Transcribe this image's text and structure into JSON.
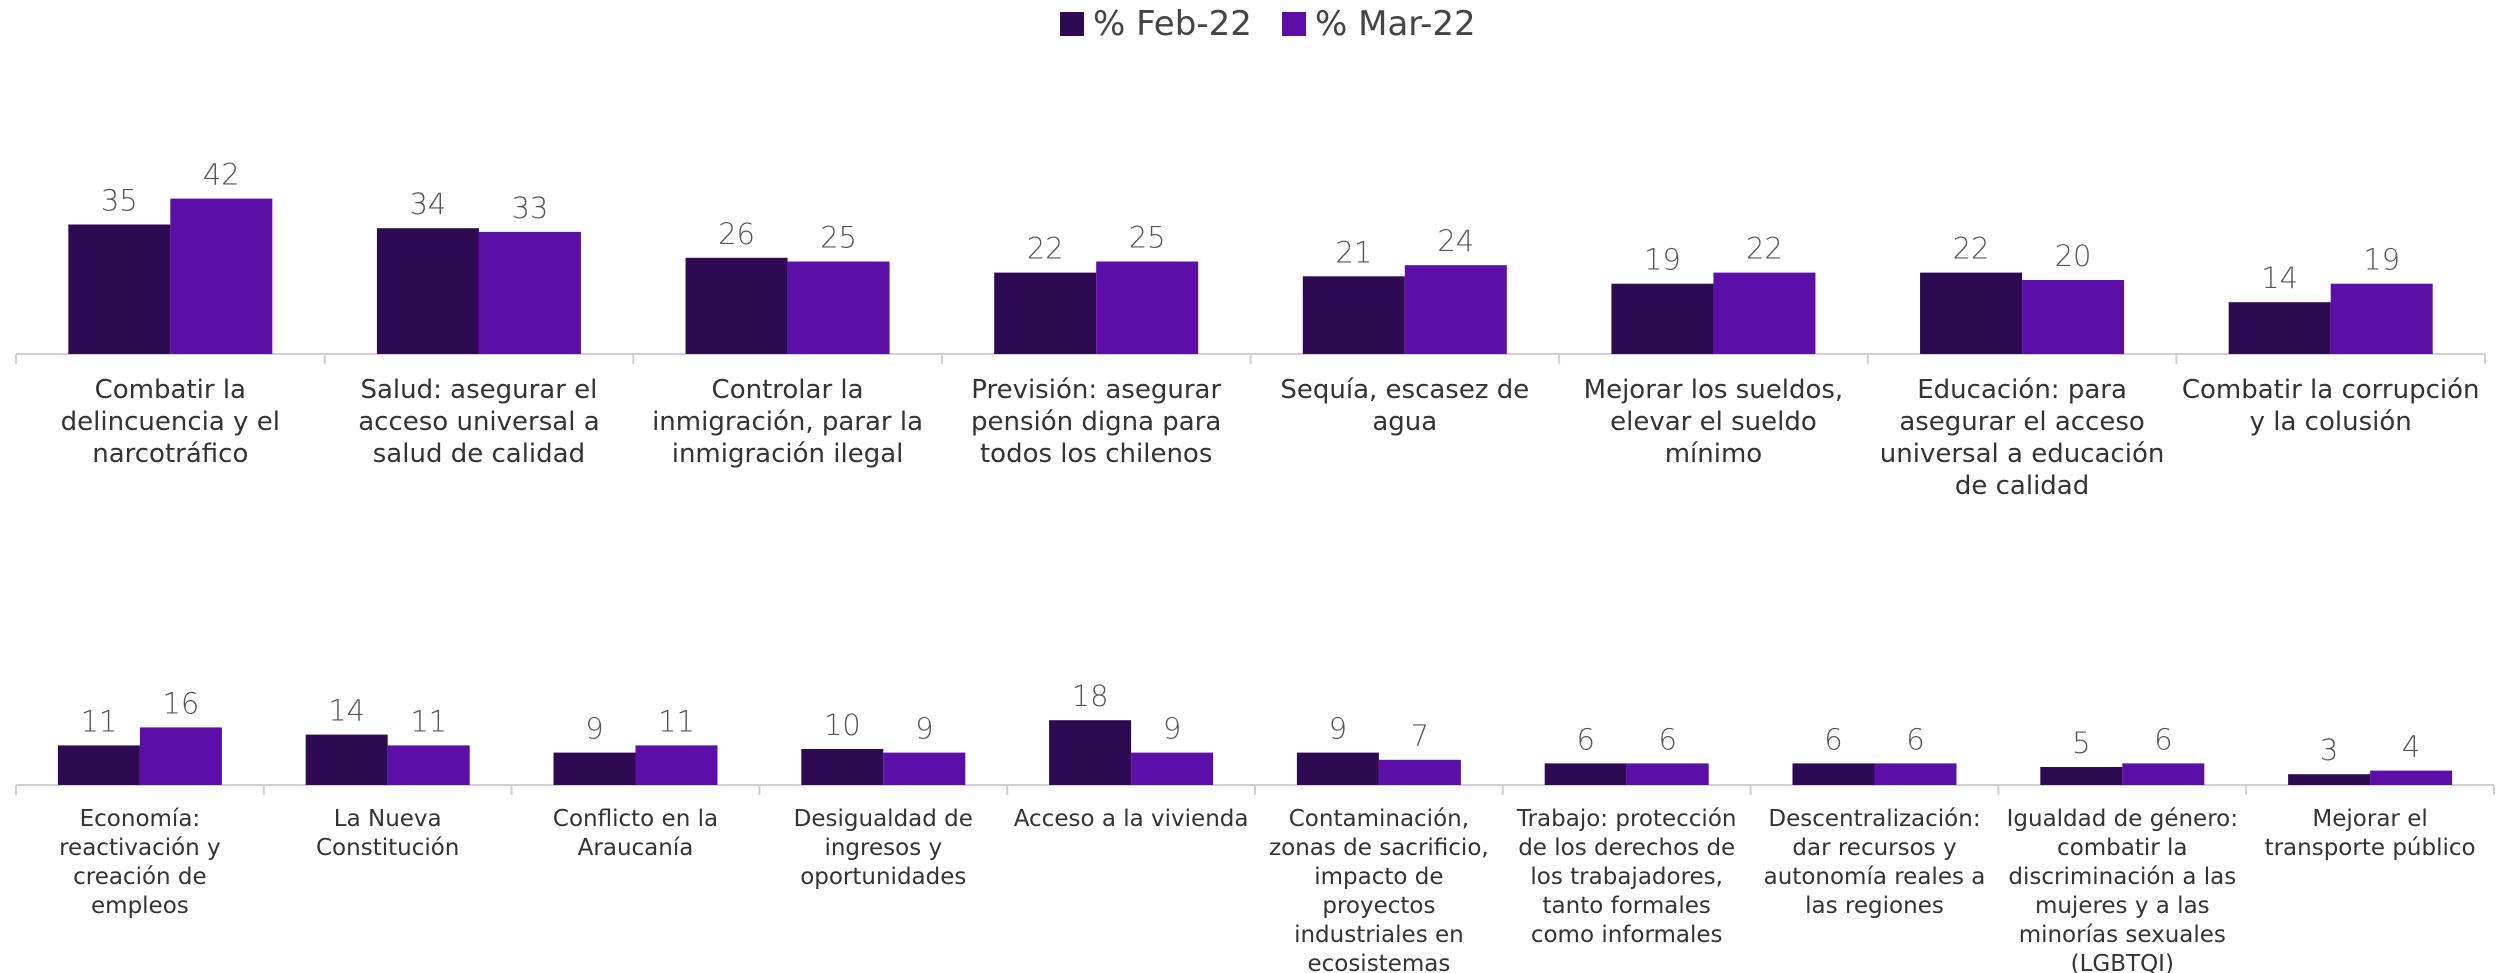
{
  "colors": {
    "feb": "#2e0a52",
    "mar": "#5b0fa8",
    "axis": "#d0d0d0"
  },
  "legend": [
    {
      "label": "% Feb-22",
      "color": "#2e0a52"
    },
    {
      "label": "% Mar-22",
      "color": "#5b0fa8"
    }
  ],
  "chart_data": [
    {
      "type": "bar",
      "legend_position": "top-center",
      "series": [
        {
          "name": "% Feb-22",
          "values": [
            35,
            34,
            26,
            22,
            21,
            19,
            22,
            14
          ]
        },
        {
          "name": "% Mar-22",
          "values": [
            42,
            33,
            25,
            25,
            24,
            22,
            20,
            19
          ]
        }
      ],
      "categories": [
        [
          "Combatir la",
          "delincuencia y el",
          "narcotráfico"
        ],
        [
          "Salud: asegurar el",
          "acceso universal a",
          "salud de calidad"
        ],
        [
          "Controlar la",
          "inmigración, parar la",
          "inmigración ilegal"
        ],
        [
          "Previsión: asegurar",
          "pensión digna para",
          "todos los chilenos"
        ],
        [
          "Sequía, escasez de",
          "agua"
        ],
        [
          "Mejorar los sueldos,",
          "elevar el sueldo",
          "mínimo"
        ],
        [
          "Educación: para",
          "asegurar el acceso",
          "universal a educación",
          "de calidad"
        ],
        [
          "Combatir la corrupción",
          "y la colusión"
        ]
      ]
    },
    {
      "type": "bar",
      "series": [
        {
          "name": "% Feb-22",
          "values": [
            11,
            14,
            9,
            10,
            18,
            9,
            6,
            6,
            5,
            3
          ]
        },
        {
          "name": "% Mar-22",
          "values": [
            16,
            11,
            11,
            9,
            9,
            7,
            6,
            6,
            6,
            4
          ]
        }
      ],
      "categories": [
        [
          "Economía:",
          "reactivación y",
          "creación de",
          "empleos"
        ],
        [
          "La Nueva",
          "Constitución"
        ],
        [
          "Conflicto en la",
          "Araucanía"
        ],
        [
          "Desigualdad de",
          "ingresos y",
          "oportunidades"
        ],
        [
          "Acceso a la vivienda"
        ],
        [
          "Contaminación,",
          "zonas de sacrificio,",
          "impacto de",
          "proyectos",
          "industriales en",
          "ecosistemas"
        ],
        [
          "Trabajo: protección",
          "de los derechos de",
          "los trabajadores,",
          "tanto formales",
          "como informales"
        ],
        [
          "Descentralización:",
          "dar recursos y",
          "autonomía reales a",
          "las regiones"
        ],
        [
          "Igualdad de género:",
          "combatir la",
          "discriminación a las",
          "mujeres y a las",
          "minorías sexuales",
          "(LGBTQI)"
        ],
        [
          "Mejorar el",
          "transporte público"
        ]
      ]
    }
  ]
}
